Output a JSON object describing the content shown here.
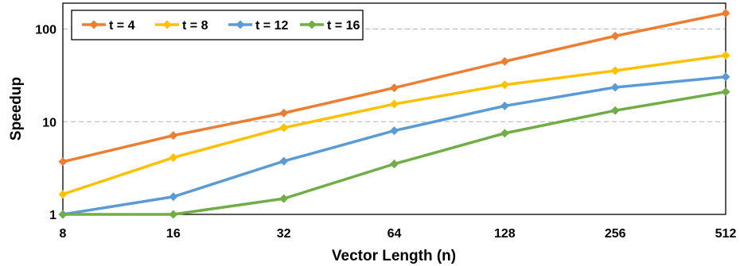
{
  "chart_data": {
    "type": "line",
    "xlabel": "Vector Length (n)",
    "ylabel": "Speedup",
    "y_scale": "log",
    "ylim": [
      1,
      190
    ],
    "x": [
      "8",
      "16",
      "32",
      "64",
      "128",
      "256",
      "512"
    ],
    "y_ticks": [
      "1",
      "10",
      "100"
    ],
    "gridlines": "horizontal-dashed",
    "legend_position": "top-left",
    "series": [
      {
        "name": "t = 4",
        "color": "#ED7D31",
        "values": [
          3.7,
          7.1,
          12.4,
          23.2,
          44.7,
          84,
          148
        ]
      },
      {
        "name": "t = 8",
        "color": "#FFC000",
        "values": [
          1.65,
          4.1,
          8.6,
          15.5,
          25,
          35.5,
          52
        ]
      },
      {
        "name": "t = 12",
        "color": "#5B9BD5",
        "values": [
          1.0,
          1.55,
          3.75,
          8.0,
          14.8,
          23.5,
          30.5
        ]
      },
      {
        "name": "t = 16",
        "color": "#70AD47",
        "values": [
          1.0,
          1.0,
          1.48,
          3.5,
          7.5,
          13.2,
          21
        ]
      }
    ]
  }
}
